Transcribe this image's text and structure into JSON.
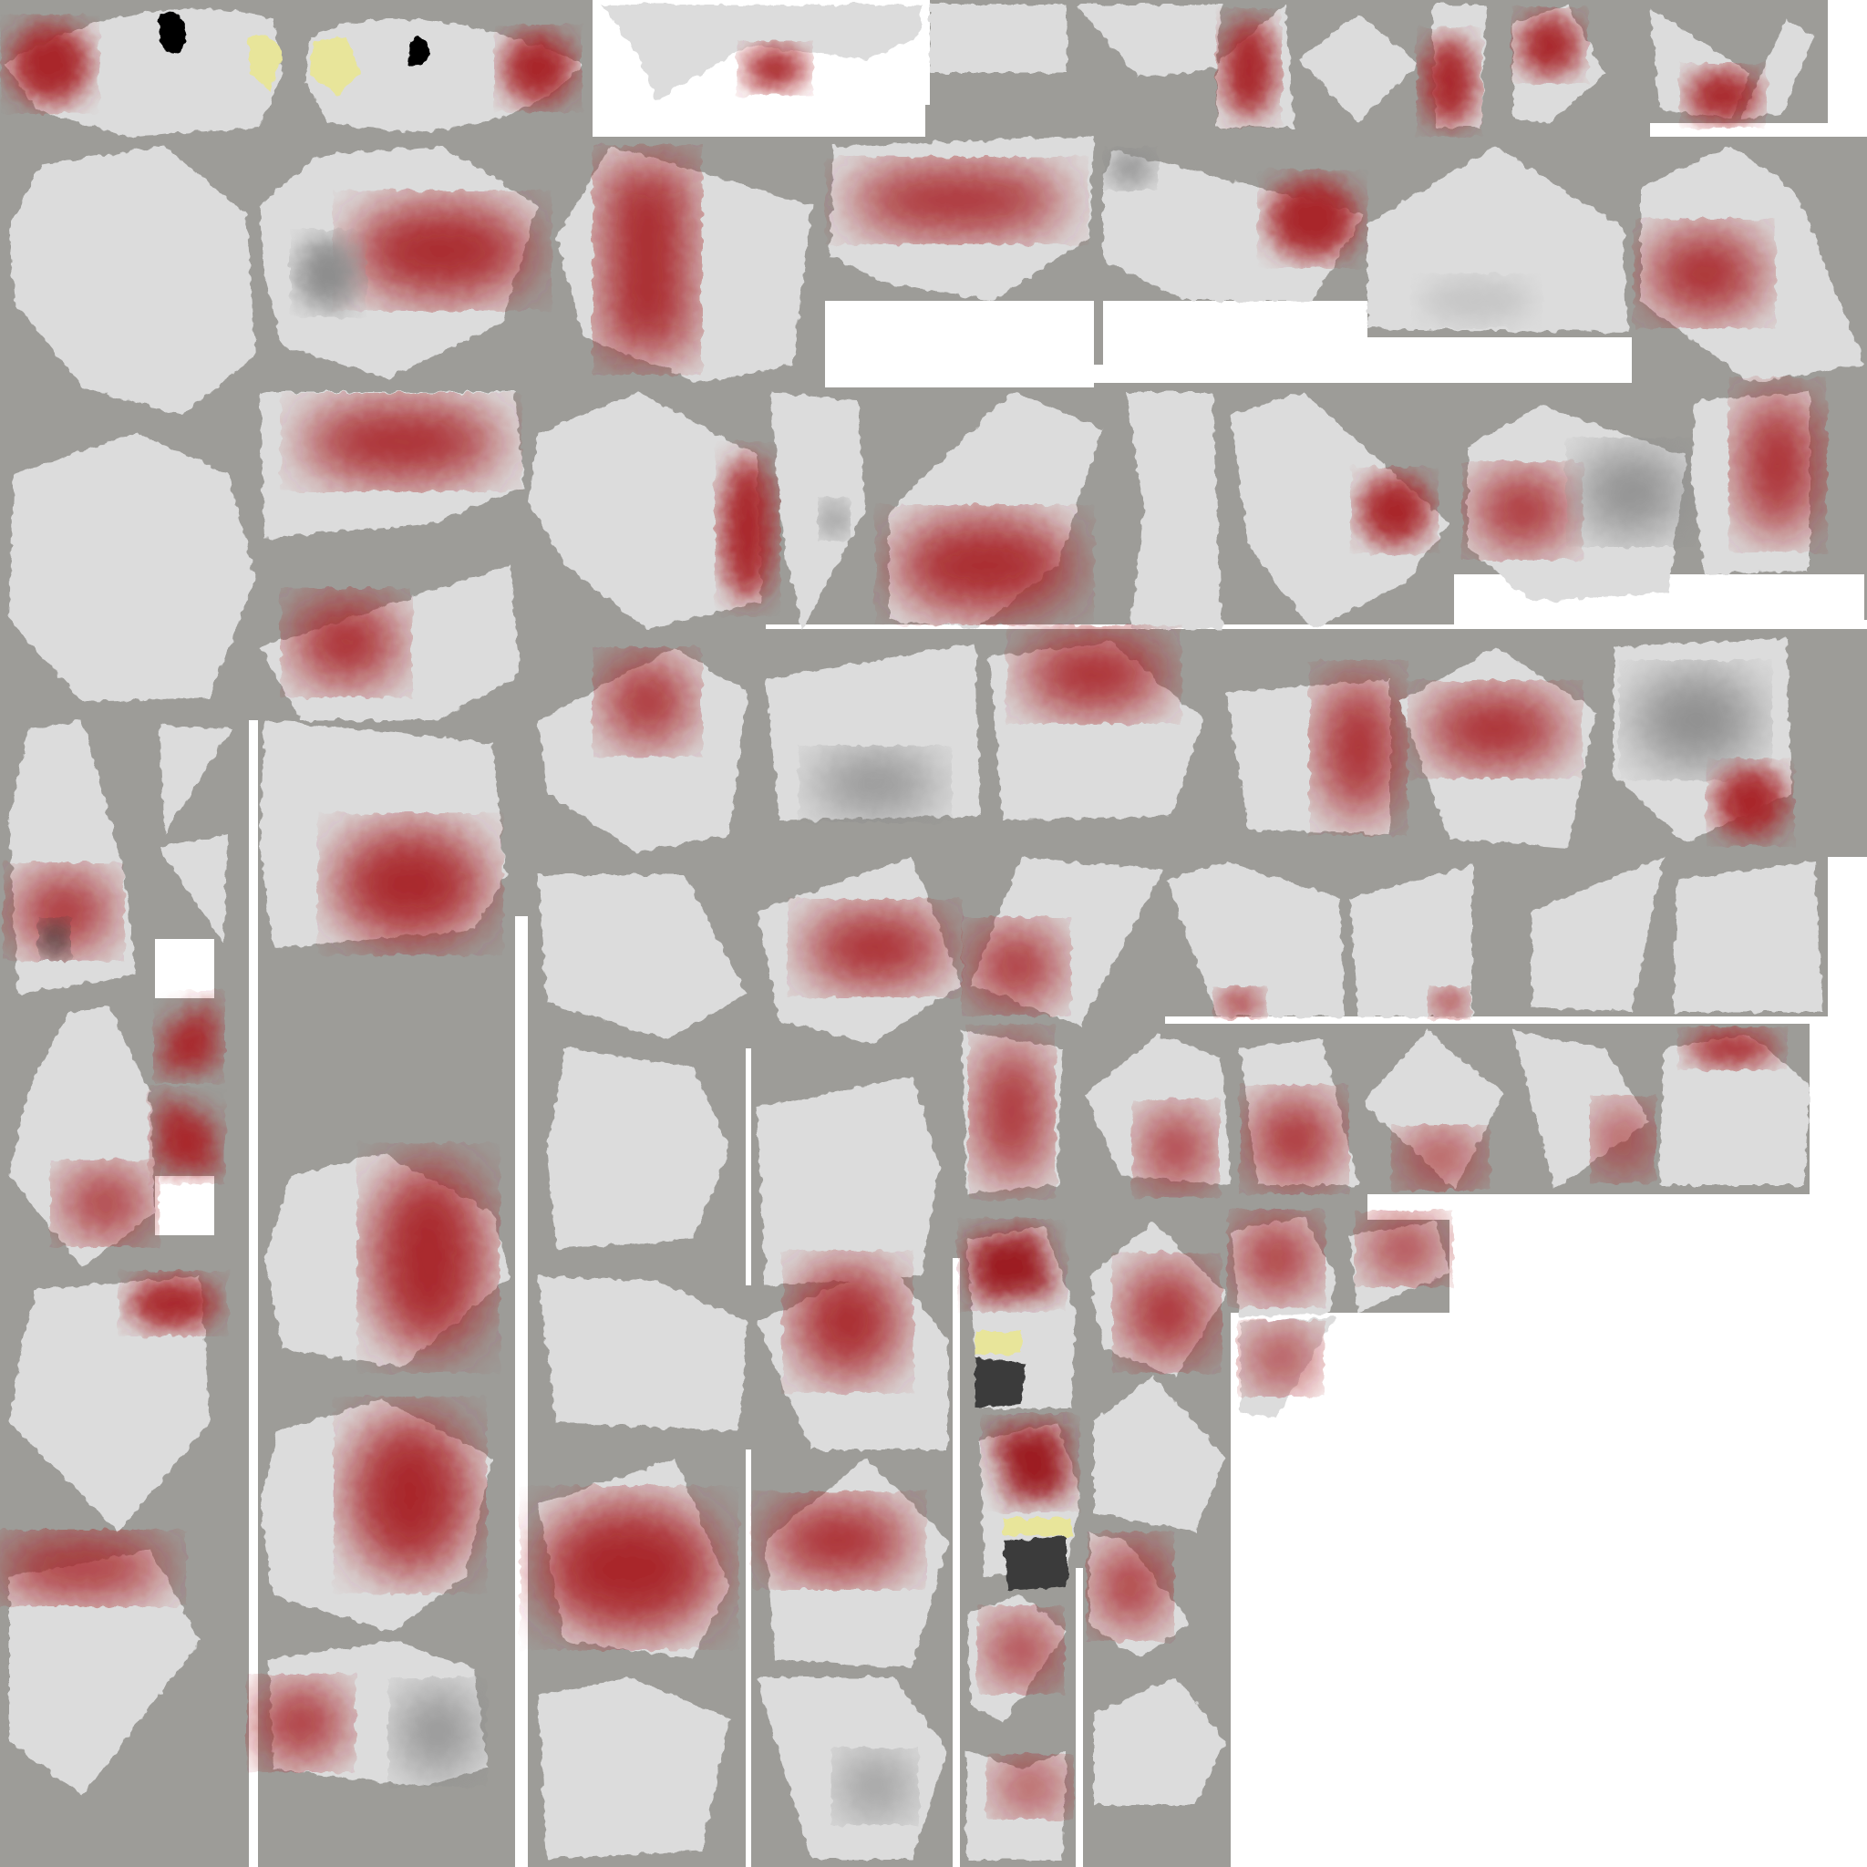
{
  "texture_atlas": {
    "description_colors": {
      "background": "#ffffff",
      "gutter": "#9d9c98",
      "skin": "#dcdcdc",
      "red": "#a9262c",
      "dark_red": "#9c1b22",
      "shadow": "#8d8d8d",
      "yellow": "#e8e59a",
      "dark": "#3a3a3a",
      "black": "#000000"
    },
    "patch_style": "rough-edged UV islands with red and grey gradient paint"
  }
}
